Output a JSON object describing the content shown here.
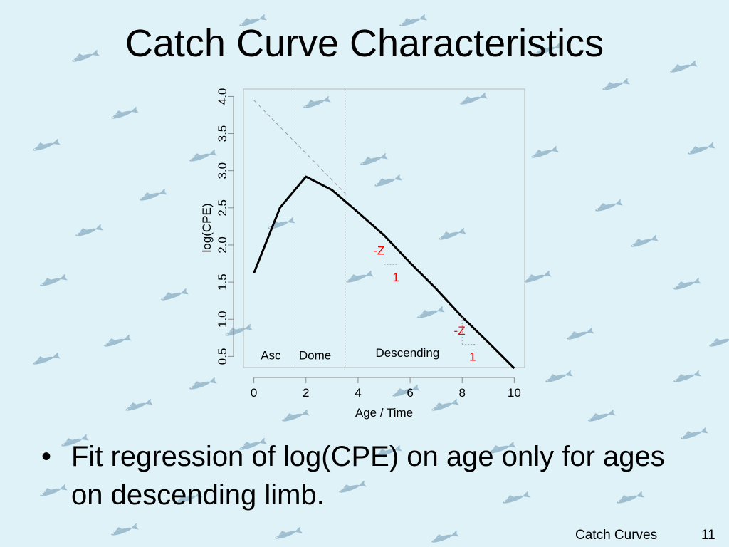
{
  "slide": {
    "title": "Catch Curve Characteristics",
    "bullet_marker": "•",
    "bullet": "Fit regression of log(CPE) on age only for ages on descending limb.",
    "footer_title": "Catch Curves",
    "page_number": "11",
    "background_color": "#dff2f8",
    "background_icon": "fish-icon"
  },
  "chart_data": {
    "type": "line",
    "xlabel": "Age / Time",
    "ylabel": "log(CPE)",
    "xlim": [
      -0.4,
      10.4
    ],
    "ylim": [
      0.35,
      4.1
    ],
    "x_ticks": [
      0,
      2,
      4,
      6,
      8,
      10
    ],
    "x_tick_labels": [
      "0",
      "2",
      "4",
      "6",
      "8",
      "10"
    ],
    "y_ticks": [
      0.5,
      1.0,
      1.5,
      2.0,
      2.5,
      3.0,
      3.5,
      4.0
    ],
    "y_tick_labels": [
      "0.5",
      "1.0",
      "1.5",
      "2.0",
      "2.5",
      "3.0",
      "3.5",
      "4.0"
    ],
    "grid": false,
    "series": [
      {
        "x": [
          0,
          1,
          2,
          3,
          4,
          5,
          6,
          7,
          8,
          9,
          10
        ],
        "y": [
          1.62,
          2.5,
          2.92,
          2.74,
          2.44,
          2.13,
          1.76,
          1.41,
          1.03,
          0.69,
          0.34
        ],
        "color": "#000000"
      }
    ],
    "reference_line": {
      "x": [
        0,
        3.6
      ],
      "y": [
        3.95,
        2.66
      ],
      "style": "dashed",
      "color": "#9a9a9a"
    },
    "region_dividers": [
      1.5,
      3.5
    ],
    "region_labels": [
      {
        "text": "Asc",
        "x": 0.65,
        "y": 0.52
      },
      {
        "text": "Dome",
        "x": 2.35,
        "y": 0.52
      },
      {
        "text": "Descending",
        "x": 5.9,
        "y": 0.55
      }
    ],
    "slope_annotations": [
      {
        "rise_label": "-Z",
        "run_label": "1",
        "x0": 5.0,
        "y0": 2.13,
        "x1": 5.55,
        "y1": 1.74,
        "rise_at": [
          4.8,
          1.93
        ],
        "run_at": [
          5.45,
          1.57
        ]
      },
      {
        "rise_label": "-Z",
        "run_label": "1",
        "x0": 8.0,
        "y0": 1.03,
        "x1": 8.55,
        "y1": 0.66,
        "rise_at": [
          7.9,
          0.85
        ],
        "run_at": [
          8.4,
          0.5
        ]
      }
    ],
    "annotation_color": "#ff0000"
  }
}
